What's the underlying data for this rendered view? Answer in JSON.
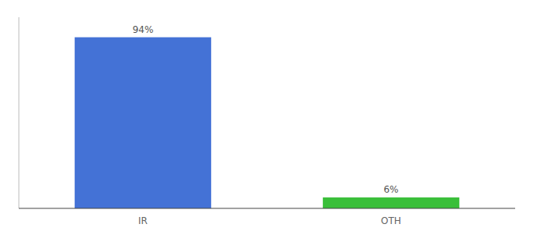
{
  "chart_data": {
    "type": "bar",
    "categories": [
      "IR",
      "OTH"
    ],
    "values": [
      94,
      6
    ],
    "value_labels": [
      "94%",
      "6%"
    ],
    "colors": [
      "#4472d6",
      "#3abf3a"
    ],
    "ylim": [
      0,
      105
    ],
    "data_labels": true,
    "tick_labels": "x",
    "grid": false
  }
}
